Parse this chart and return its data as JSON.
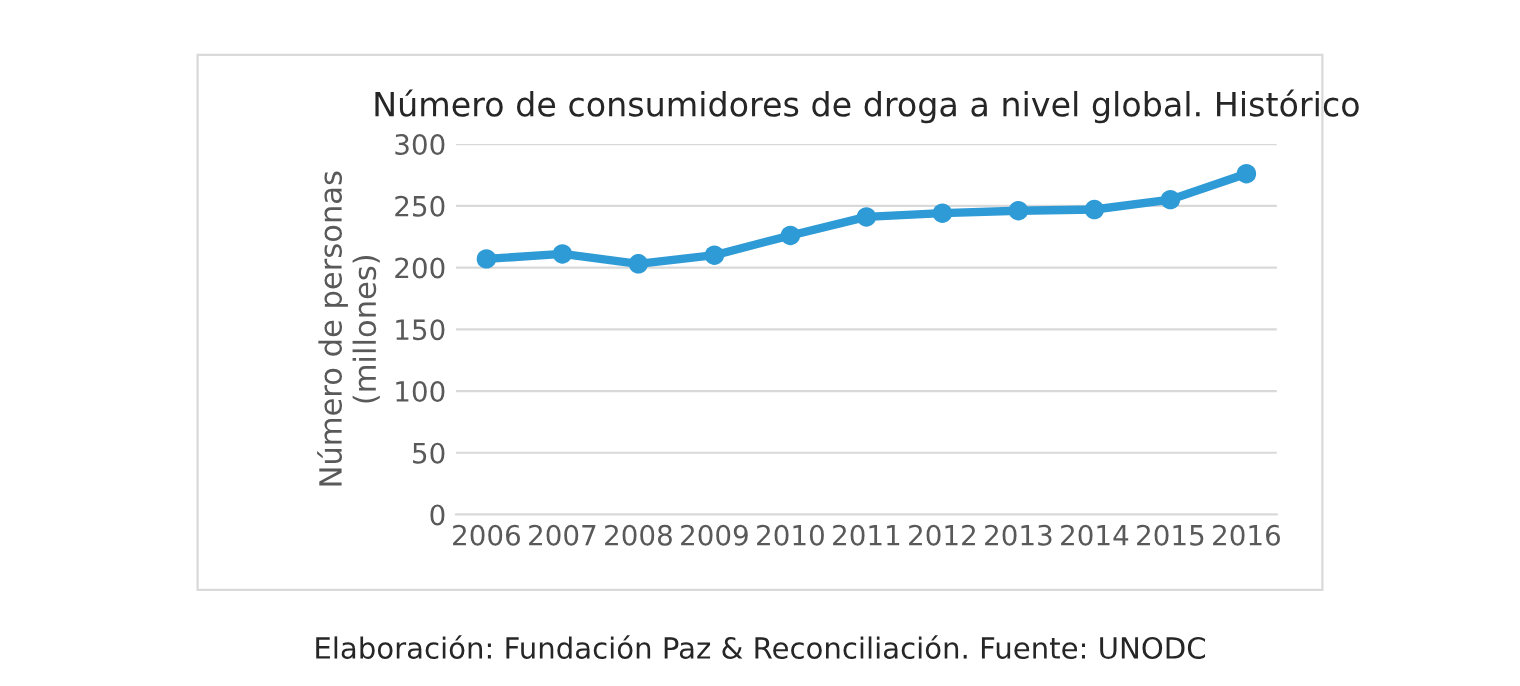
{
  "chart_data": {
    "type": "line",
    "title": "Número de consumidores de droga a nivel global. Histórico",
    "ylabel": "Número de personas\n(millones)",
    "categories": [
      "2006",
      "2007",
      "2008",
      "2009",
      "2010",
      "2011",
      "2012",
      "2013",
      "2014",
      "2015",
      "2016"
    ],
    "series": [
      {
        "color": "#2e9bd6",
        "values": [
          207,
          211,
          203,
          210,
          226,
          241,
          244,
          246,
          247,
          255,
          276
        ]
      }
    ],
    "ylim": [
      0,
      300
    ],
    "yticks": [
      0,
      50,
      100,
      150,
      200,
      250,
      300
    ],
    "grid": "y",
    "marker": "circle",
    "line_style": "solid",
    "annotations": [
      "Elaboración: Fundación Paz & Reconciliación. Fuente: UNODC"
    ]
  }
}
